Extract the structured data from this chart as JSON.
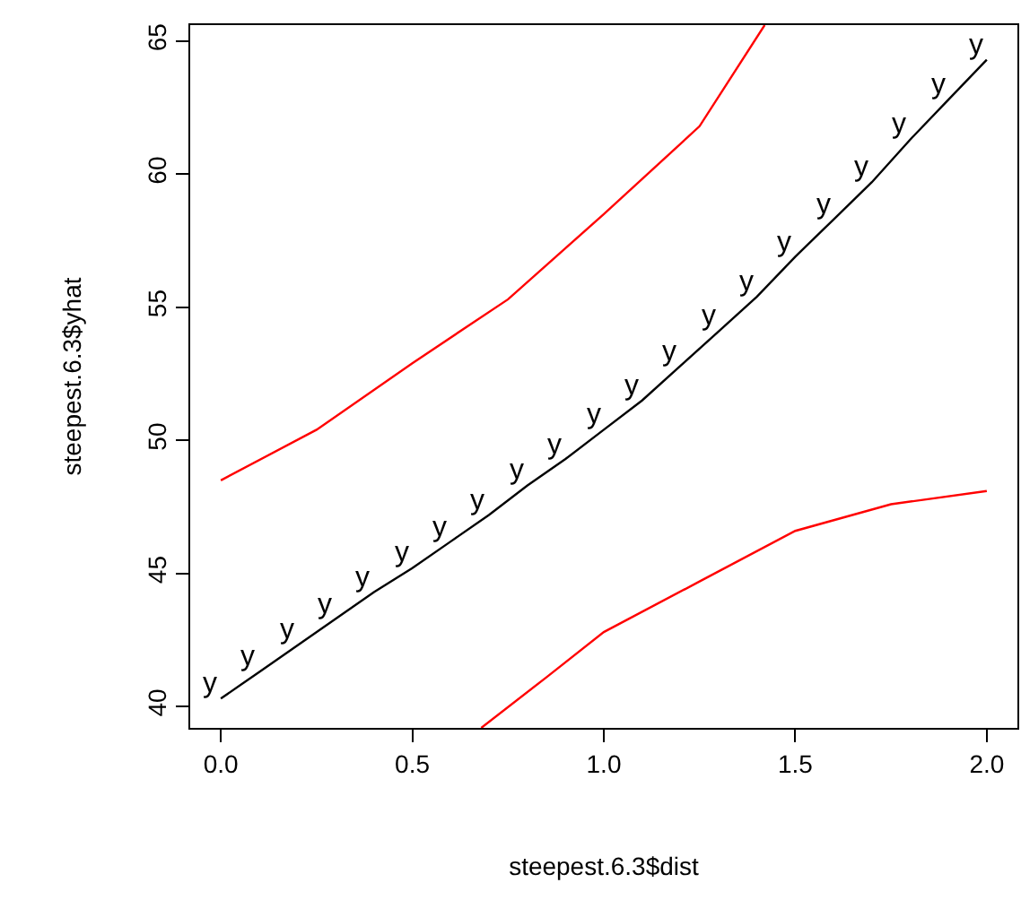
{
  "chart_data": {
    "type": "line",
    "xlabel": "steepest.6.3$dist",
    "ylabel": "steepest.6.3$yhat",
    "xlim": [
      -0.08,
      2.08
    ],
    "ylim": [
      39.2,
      65.6
    ],
    "xticks": [
      {
        "value": 0,
        "label": "0.0"
      },
      0.5,
      {
        "value": 1,
        "label": "1.0"
      },
      1.5,
      {
        "value": 2,
        "label": "2.0"
      }
    ],
    "yticks": [
      40,
      45,
      50,
      55,
      60,
      65
    ],
    "grid": false,
    "legend": false,
    "marker": "none",
    "line_style": "solid",
    "series": [
      {
        "name": "y",
        "color": "#000000",
        "x": [
          0,
          0.1,
          0.2,
          0.3,
          0.4,
          0.5,
          0.6,
          0.7,
          0.8,
          0.9,
          1.0,
          1.1,
          1.2,
          1.3,
          1.4,
          1.5,
          1.6,
          1.7,
          1.8,
          1.9,
          2.0
        ],
        "values": [
          40.3,
          41.3,
          42.3,
          43.3,
          44.3,
          45.2,
          46.2,
          47.2,
          48.3,
          49.3,
          50.4,
          51.5,
          52.8,
          54.1,
          55.4,
          56.9,
          58.3,
          59.7,
          61.3,
          62.8,
          64.3
        ]
      },
      {
        "color": "#ff0000",
        "x": [
          0,
          0.25,
          0.5,
          0.75,
          1.0,
          1.25,
          1.42
        ],
        "values": [
          48.5,
          50.4,
          52.9,
          55.3,
          58.5,
          61.8,
          65.6
        ]
      },
      {
        "color": "#ff0000",
        "x": [
          0.68,
          0.85,
          1.0,
          1.25,
          1.5,
          1.75,
          2.0
        ],
        "values": [
          39.2,
          41.1,
          42.8,
          44.7,
          46.6,
          47.6,
          48.1
        ]
      }
    ]
  }
}
